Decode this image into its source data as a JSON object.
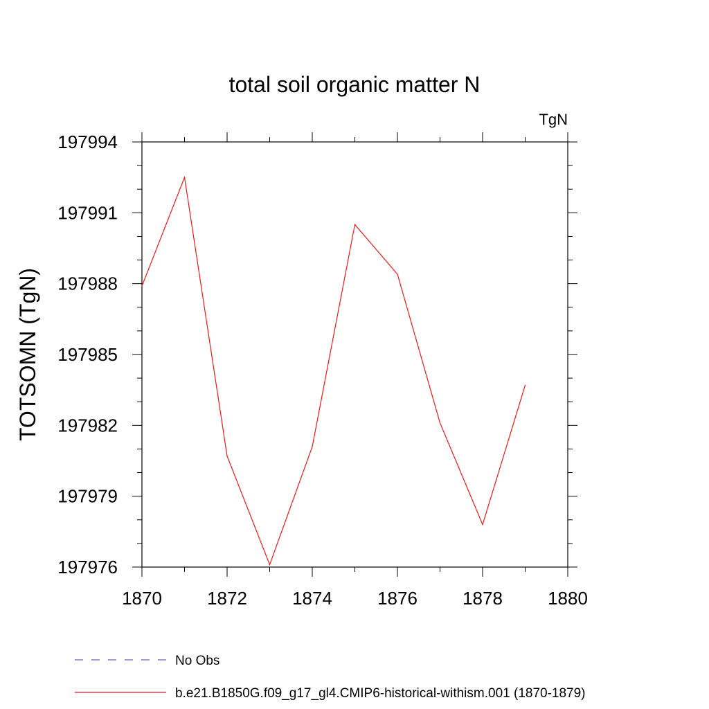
{
  "chart_data": {
    "type": "line",
    "title": "total soil organic matter N",
    "units_label": "TgN",
    "ylabel": "TOTSOMN  (TgN)",
    "xlabel": "",
    "xlim": [
      1870,
      1880
    ],
    "ylim": [
      197976,
      197994
    ],
    "x_ticks": [
      1870,
      1872,
      1874,
      1876,
      1878,
      1880
    ],
    "y_ticks": [
      197976,
      197979,
      197982,
      197985,
      197988,
      197991,
      197994
    ],
    "grid": false,
    "legend_position": "bottom-left",
    "series": [
      {
        "name": "No Obs",
        "color": "#6a5acd",
        "style": "dashed",
        "x": [],
        "values": []
      },
      {
        "name": "b.e21.B1850G.f09_g17_gl4.CMIP6-historical-withism.001 (1870-1879)",
        "color": "#e41a1c",
        "style": "solid",
        "x": [
          1870,
          1871,
          1872,
          1873,
          1874,
          1875,
          1876,
          1877,
          1878,
          1879
        ],
        "values": [
          197987.9,
          197992.5,
          197980.7,
          197976.1,
          197981.1,
          197990.5,
          197988.4,
          197982.1,
          197977.8,
          197983.7
        ]
      }
    ]
  }
}
